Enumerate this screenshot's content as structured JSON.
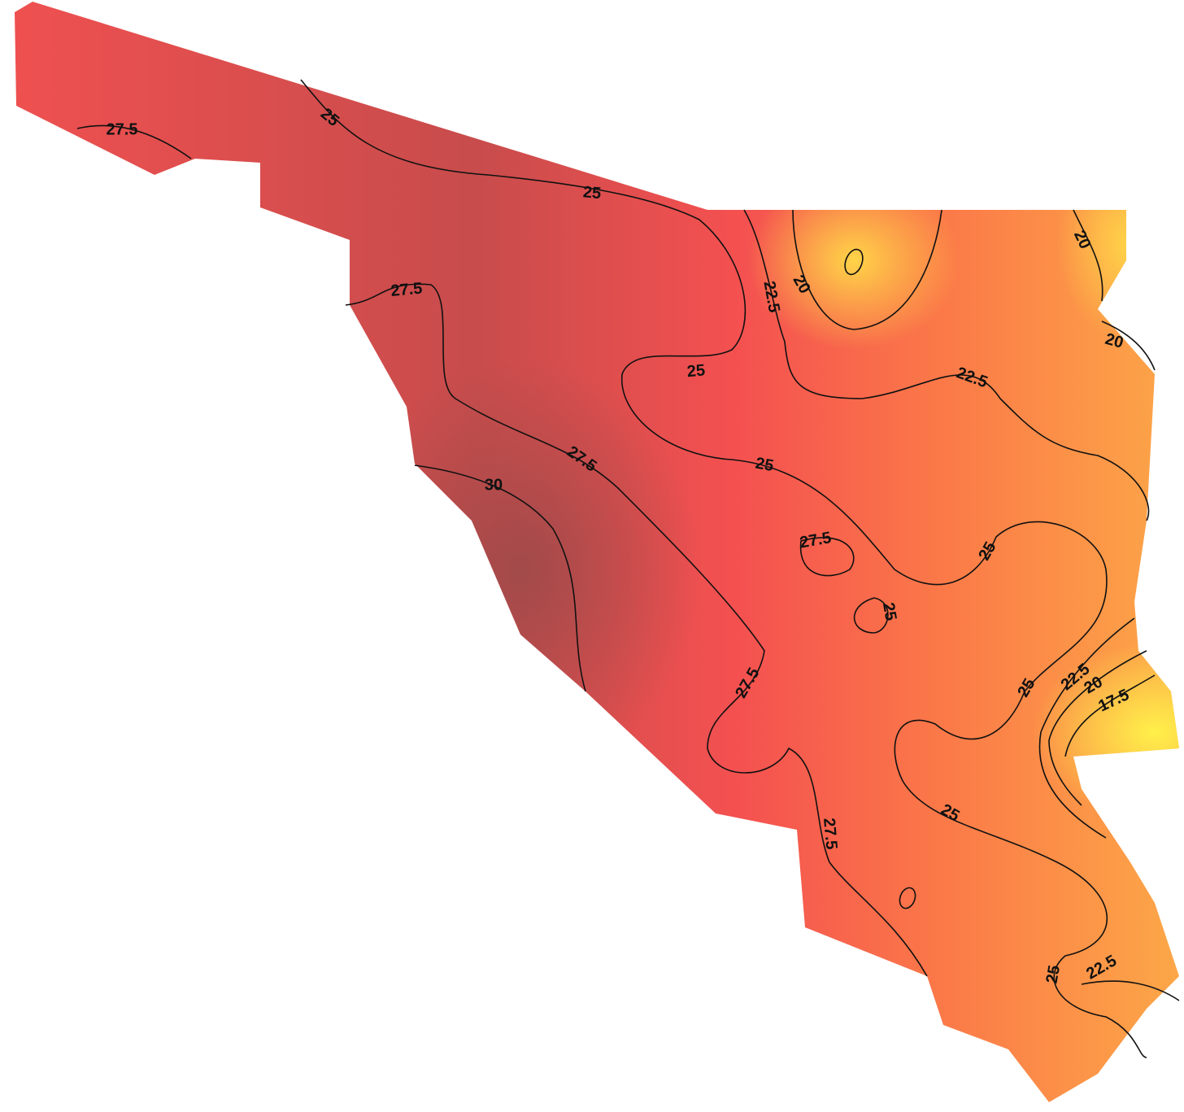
{
  "contour_labels": [
    27.5,
    25,
    25,
    27.5,
    22.5,
    20,
    25,
    20,
    20,
    22.5,
    27.5,
    30,
    25,
    27.5,
    25,
    25,
    27.5,
    25,
    22.5,
    20,
    17.5,
    25,
    27.5,
    25,
    22.5
  ]
}
